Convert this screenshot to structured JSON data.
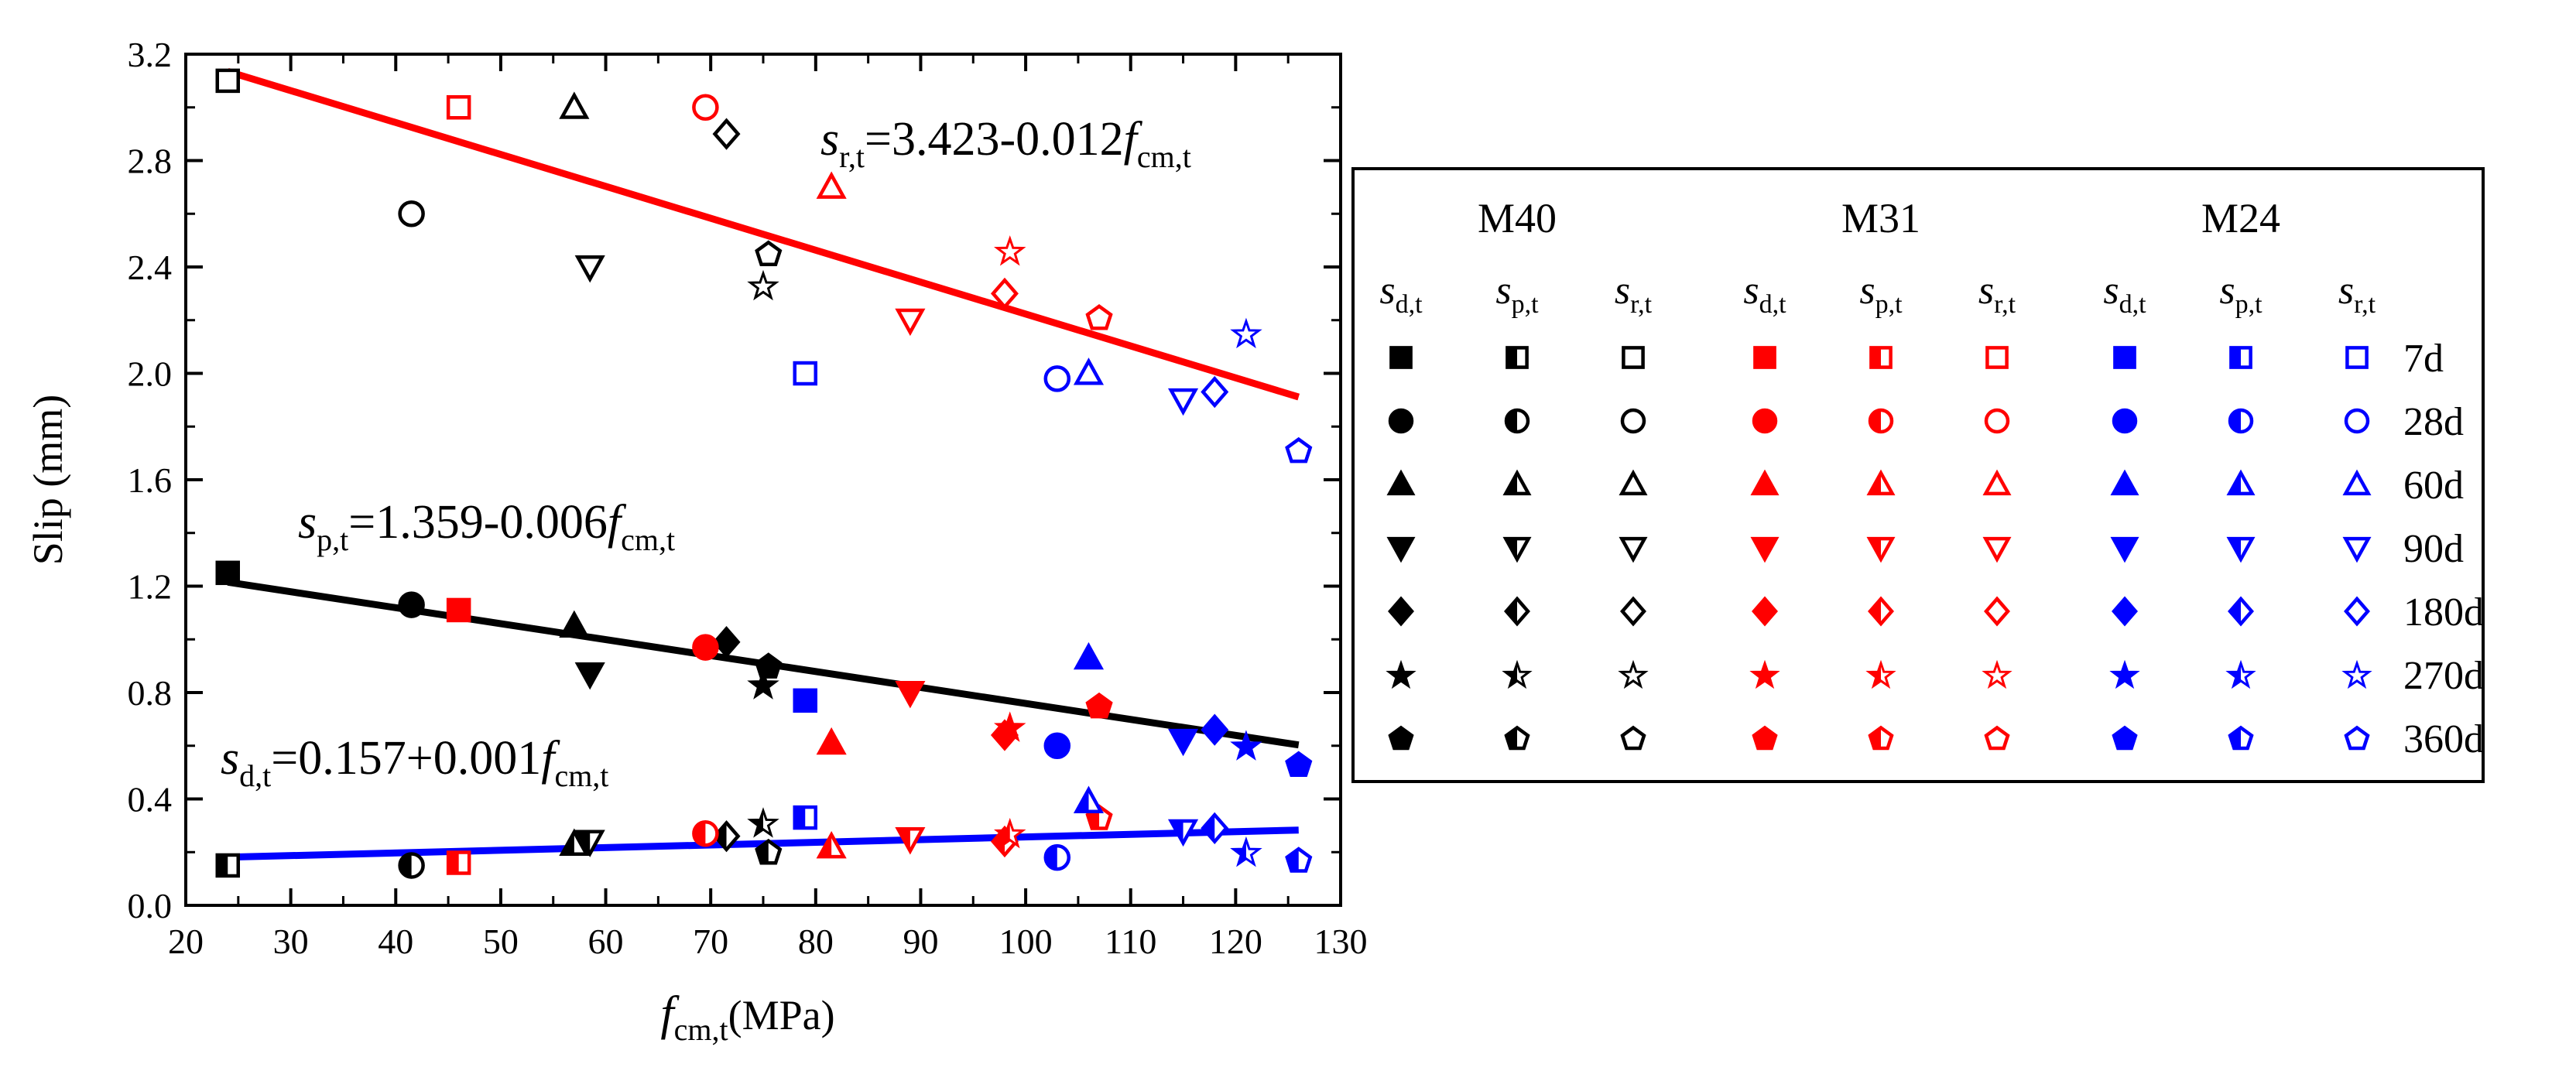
{
  "chart_data": {
    "type": "scatter",
    "xlabel": {
      "main": "f",
      "sub": "cm,t",
      "suffix": "(MPa)"
    },
    "ylabel": "Slip (mm)",
    "xlim": [
      20,
      130
    ],
    "ylim": [
      0.0,
      3.2
    ],
    "xticks": [
      "20",
      "30",
      "40",
      "50",
      "60",
      "70",
      "80",
      "90",
      "100",
      "110",
      "120",
      "130"
    ],
    "yticks": [
      "0.0",
      "0.4",
      "0.8",
      "1.2",
      "1.6",
      "2.0",
      "2.4",
      "2.8",
      "3.2"
    ],
    "colors": {
      "M40": "#000000",
      "M31": "#ff0000",
      "M24": "#0000ff"
    },
    "groups": [
      "M40",
      "M31",
      "M24"
    ],
    "quantities": [
      {
        "key": "d",
        "label_main": "s",
        "label_sub": "d,t",
        "fill": "full"
      },
      {
        "key": "p",
        "label_main": "s",
        "label_sub": "p,t",
        "fill": "half"
      },
      {
        "key": "r",
        "label_main": "s",
        "label_sub": "r,t",
        "fill": "open"
      }
    ],
    "ages": [
      {
        "label": "7d",
        "marker": "square"
      },
      {
        "label": "28d",
        "marker": "circle"
      },
      {
        "label": "60d",
        "marker": "triangle-up"
      },
      {
        "label": "90d",
        "marker": "triangle-down"
      },
      {
        "label": "180d",
        "marker": "diamond"
      },
      {
        "label": "270d",
        "marker": "star"
      },
      {
        "label": "360d",
        "marker": "pentagon"
      }
    ],
    "points": {
      "M40": {
        "x": [
          24.0,
          41.5,
          57.0,
          58.5,
          71.5,
          75.0,
          75.5
        ],
        "d": [
          1.25,
          1.13,
          1.05,
          0.87,
          0.99,
          0.83,
          0.9
        ],
        "p": [
          0.15,
          0.15,
          0.23,
          0.24,
          0.26,
          0.31,
          0.2
        ],
        "r": [
          3.1,
          2.6,
          3.0,
          2.4,
          2.9,
          2.33,
          2.45
        ]
      },
      "M31": {
        "x": [
          46.0,
          69.5,
          81.5,
          89.0,
          98.0,
          98.5,
          107.0
        ],
        "d": [
          1.11,
          0.97,
          0.61,
          0.8,
          0.64,
          0.67,
          0.75
        ],
        "p": [
          0.16,
          0.27,
          0.22,
          0.25,
          0.24,
          0.27,
          0.33
        ],
        "r": [
          3.0,
          3.0,
          2.7,
          2.2,
          2.3,
          2.46,
          2.21
        ]
      },
      "M24": {
        "x": [
          79.0,
          103.0,
          106.0,
          115.0,
          118.0,
          121.0,
          126.0
        ],
        "d": [
          0.77,
          0.6,
          0.93,
          0.62,
          0.66,
          0.6,
          0.53
        ],
        "p": [
          0.33,
          0.18,
          0.39,
          0.28,
          0.29,
          0.2,
          0.17
        ],
        "r": [
          2.0,
          1.98,
          2.0,
          1.9,
          1.93,
          2.15,
          1.71
        ]
      }
    },
    "fits": [
      {
        "key": "r",
        "color": "#ff0000",
        "intercept": 3.423,
        "slope": -0.012,
        "x_range": [
          24,
          126
        ],
        "eq_main": "s",
        "eq_sub": "r,t",
        "eq_mid": "=3.423-0.012",
        "eq_f": "f",
        "eq_fsub": "cm,t"
      },
      {
        "key": "p",
        "color": "#000000",
        "intercept": 1.359,
        "slope": -0.006,
        "x_range": [
          24,
          126
        ],
        "eq_main": "s",
        "eq_sub": "p,t",
        "eq_mid": "=1.359-0.006",
        "eq_f": "f",
        "eq_fsub": "cm,t"
      },
      {
        "key": "d",
        "color": "#0000ff",
        "intercept": 0.157,
        "slope": 0.001,
        "x_range": [
          24,
          126
        ],
        "eq_main": "s",
        "eq_sub": "d,t",
        "eq_mid": "=0.157+0.001",
        "eq_f": "f",
        "eq_fsub": "cm,t"
      }
    ],
    "legend_position": "right"
  }
}
